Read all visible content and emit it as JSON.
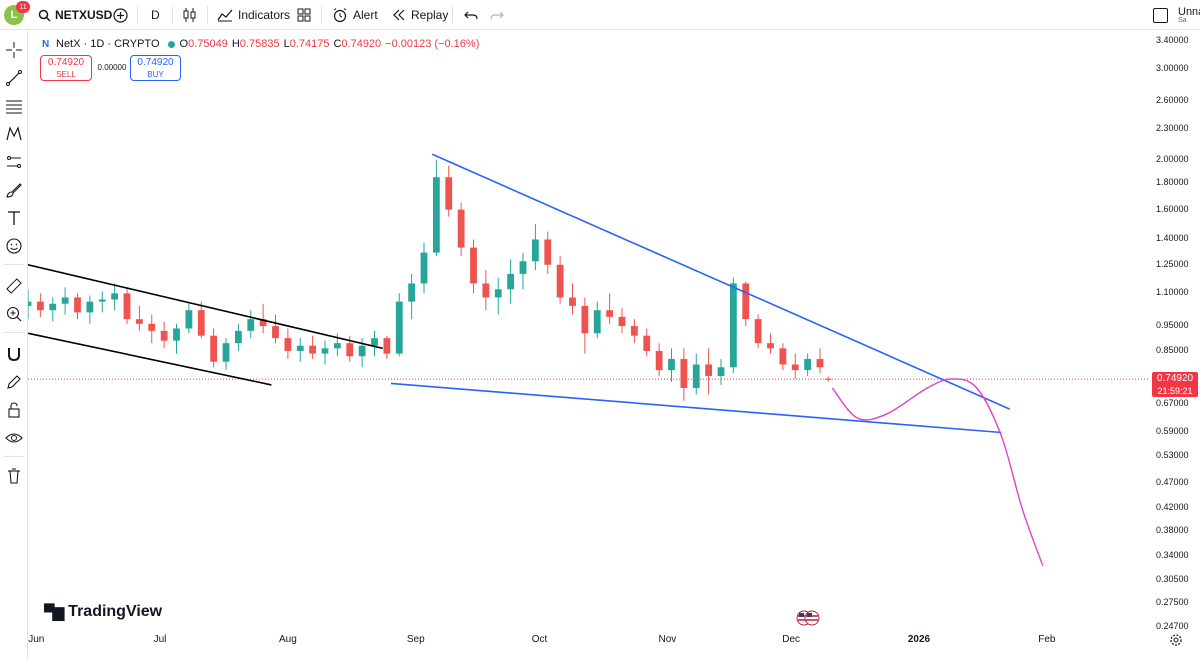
{
  "toolbar": {
    "notifications": "11",
    "avatar_letter": "L",
    "symbol": "NETXUSD",
    "interval": "D",
    "indicators_label": "Indicators",
    "alert_label": "Alert",
    "replay_label": "Replay",
    "layout_name": "Unna",
    "layout_sub": "Sa"
  },
  "legend": {
    "title": "NetX · 1D · CRYPTO",
    "open_label": "O",
    "open": "0.75049",
    "high_label": "H",
    "high": "0.75835",
    "low_label": "L",
    "low": "0.74175",
    "close_label": "C",
    "close": "0.74920",
    "change": "−0.00123 (−0.16%)"
  },
  "trade": {
    "sell_price": "0.74920",
    "sell_label": "SELL",
    "spread": "0.00000",
    "buy_price": "0.74920",
    "buy_label": "BUY"
  },
  "current_price": {
    "price": "0.74920",
    "countdown": "21:59:21"
  },
  "branding": {
    "name": "TradingView"
  },
  "colors": {
    "up": "#26a69a",
    "down": "#ef5350",
    "trend_blue": "#2962ff",
    "channel_black": "#000000",
    "projection": "#e040c8",
    "price_line": "#f23645"
  },
  "chart_data": {
    "type": "candlestick",
    "title": "NetX · 1D · CRYPTO",
    "y_scale": "log",
    "ylim": [
      0.247,
      3.45
    ],
    "y_ticks": [
      "3.40000",
      "3.00000",
      "2.60000",
      "2.30000",
      "2.00000",
      "1.80000",
      "1.60000",
      "1.40000",
      "1.25000",
      "1.10000",
      "0.95000",
      "0.85000",
      "0.67000",
      "0.59000",
      "0.53000",
      "0.47000",
      "0.42000",
      "0.38000",
      "0.34000",
      "0.30500",
      "0.27500",
      "0.24700"
    ],
    "x_ticks": [
      {
        "label": "Jun",
        "date": "2025-06-01"
      },
      {
        "label": "Jul",
        "date": "2025-07-01"
      },
      {
        "label": "Aug",
        "date": "2025-08-01"
      },
      {
        "label": "Sep",
        "date": "2025-09-01"
      },
      {
        "label": "Oct",
        "date": "2025-10-01"
      },
      {
        "label": "Nov",
        "date": "2025-11-01"
      },
      {
        "label": "Dec",
        "date": "2025-12-01"
      },
      {
        "label": "2026",
        "date": "2026-01-01"
      },
      {
        "label": "Feb",
        "date": "2026-02-01"
      }
    ],
    "xlim": [
      "2025-05-30",
      "2026-02-26"
    ],
    "candles": [
      [
        "2025-05-30",
        1.04,
        1.12,
        0.98,
        1.06
      ],
      [
        "2025-06-02",
        1.06,
        1.1,
        0.99,
        1.02
      ],
      [
        "2025-06-05",
        1.02,
        1.08,
        0.97,
        1.05
      ],
      [
        "2025-06-08",
        1.05,
        1.13,
        1.0,
        1.08
      ],
      [
        "2025-06-11",
        1.08,
        1.1,
        0.98,
        1.01
      ],
      [
        "2025-06-14",
        1.01,
        1.09,
        0.96,
        1.06
      ],
      [
        "2025-06-17",
        1.06,
        1.11,
        1.01,
        1.07
      ],
      [
        "2025-06-20",
        1.07,
        1.15,
        1.02,
        1.1
      ],
      [
        "2025-06-23",
        1.1,
        1.13,
        0.96,
        0.98
      ],
      [
        "2025-06-26",
        0.98,
        1.04,
        0.93,
        0.96
      ],
      [
        "2025-06-29",
        0.96,
        1.0,
        0.88,
        0.93
      ],
      [
        "2025-07-02",
        0.93,
        0.97,
        0.86,
        0.89
      ],
      [
        "2025-07-05",
        0.89,
        0.96,
        0.84,
        0.94
      ],
      [
        "2025-07-08",
        0.94,
        1.05,
        0.92,
        1.02
      ],
      [
        "2025-07-11",
        1.02,
        1.06,
        0.9,
        0.91
      ],
      [
        "2025-07-14",
        0.91,
        0.94,
        0.79,
        0.81
      ],
      [
        "2025-07-17",
        0.81,
        0.9,
        0.78,
        0.88
      ],
      [
        "2025-07-20",
        0.88,
        0.96,
        0.85,
        0.93
      ],
      [
        "2025-07-23",
        0.93,
        1.02,
        0.9,
        0.98
      ],
      [
        "2025-07-26",
        0.98,
        1.05,
        0.92,
        0.95
      ],
      [
        "2025-07-29",
        0.95,
        1.0,
        0.88,
        0.9
      ],
      [
        "2025-08-01",
        0.9,
        0.94,
        0.82,
        0.85
      ],
      [
        "2025-08-04",
        0.85,
        0.9,
        0.81,
        0.87
      ],
      [
        "2025-08-07",
        0.87,
        0.91,
        0.82,
        0.84
      ],
      [
        "2025-08-10",
        0.84,
        0.89,
        0.8,
        0.86
      ],
      [
        "2025-08-13",
        0.86,
        0.92,
        0.83,
        0.88
      ],
      [
        "2025-08-16",
        0.88,
        0.91,
        0.81,
        0.83
      ],
      [
        "2025-08-19",
        0.83,
        0.9,
        0.79,
        0.87
      ],
      [
        "2025-08-22",
        0.87,
        0.93,
        0.83,
        0.9
      ],
      [
        "2025-08-25",
        0.9,
        0.91,
        0.82,
        0.84
      ],
      [
        "2025-08-28",
        0.84,
        1.1,
        0.83,
        1.06
      ],
      [
        "2025-08-31",
        1.06,
        1.2,
        0.98,
        1.15
      ],
      [
        "2025-09-03",
        1.15,
        1.38,
        1.1,
        1.32
      ],
      [
        "2025-09-06",
        1.32,
        2.0,
        1.3,
        1.85
      ],
      [
        "2025-09-09",
        1.85,
        1.95,
        1.55,
        1.6
      ],
      [
        "2025-09-12",
        1.6,
        1.65,
        1.3,
        1.35
      ],
      [
        "2025-09-15",
        1.35,
        1.4,
        1.1,
        1.15
      ],
      [
        "2025-09-18",
        1.15,
        1.22,
        1.02,
        1.08
      ],
      [
        "2025-09-21",
        1.08,
        1.18,
        1.0,
        1.12
      ],
      [
        "2025-09-24",
        1.12,
        1.28,
        1.05,
        1.2
      ],
      [
        "2025-09-27",
        1.2,
        1.32,
        1.12,
        1.27
      ],
      [
        "2025-09-30",
        1.27,
        1.5,
        1.22,
        1.4
      ],
      [
        "2025-10-03",
        1.4,
        1.45,
        1.2,
        1.25
      ],
      [
        "2025-10-06",
        1.25,
        1.3,
        1.05,
        1.08
      ],
      [
        "2025-10-09",
        1.08,
        1.15,
        1.0,
        1.04
      ],
      [
        "2025-10-12",
        1.04,
        1.08,
        0.84,
        0.92
      ],
      [
        "2025-10-15",
        0.92,
        1.06,
        0.9,
        1.02
      ],
      [
        "2025-10-18",
        1.02,
        1.1,
        0.96,
        0.99
      ],
      [
        "2025-10-21",
        0.99,
        1.03,
        0.92,
        0.95
      ],
      [
        "2025-10-24",
        0.95,
        0.98,
        0.88,
        0.91
      ],
      [
        "2025-10-27",
        0.91,
        0.94,
        0.83,
        0.85
      ],
      [
        "2025-10-30",
        0.85,
        0.88,
        0.76,
        0.78
      ],
      [
        "2025-11-02",
        0.78,
        0.86,
        0.74,
        0.82
      ],
      [
        "2025-11-05",
        0.82,
        0.86,
        0.68,
        0.72
      ],
      [
        "2025-11-08",
        0.72,
        0.84,
        0.7,
        0.8
      ],
      [
        "2025-11-11",
        0.8,
        0.86,
        0.7,
        0.76
      ],
      [
        "2025-11-14",
        0.76,
        0.82,
        0.73,
        0.79
      ],
      [
        "2025-11-17",
        0.79,
        1.18,
        0.77,
        1.15
      ],
      [
        "2025-11-20",
        1.15,
        1.16,
        0.95,
        0.98
      ],
      [
        "2025-11-23",
        0.98,
        1.0,
        0.86,
        0.88
      ],
      [
        "2025-11-26",
        0.88,
        0.92,
        0.84,
        0.86
      ],
      [
        "2025-11-29",
        0.86,
        0.88,
        0.78,
        0.8
      ],
      [
        "2025-12-02",
        0.8,
        0.84,
        0.75,
        0.78
      ],
      [
        "2025-12-05",
        0.78,
        0.84,
        0.76,
        0.82
      ],
      [
        "2025-12-08",
        0.82,
        0.86,
        0.77,
        0.79
      ],
      [
        "2025-12-10",
        0.75049,
        0.75835,
        0.74175,
        0.7492
      ]
    ],
    "drawings": {
      "channel_upper": [
        [
          "2025-05-30",
          1.25
        ],
        [
          "2025-08-24",
          0.86
        ]
      ],
      "channel_lower": [
        [
          "2025-05-30",
          0.92
        ],
        [
          "2025-07-28",
          0.73
        ]
      ],
      "wedge_upper": [
        [
          "2025-09-05",
          2.05
        ],
        [
          "2026-01-23",
          0.655
        ]
      ],
      "wedge_lower": [
        [
          "2025-08-26",
          0.735
        ],
        [
          "2026-01-21",
          0.59
        ]
      ],
      "projection": [
        [
          "2025-12-11",
          0.72
        ],
        [
          "2025-12-17",
          0.63
        ],
        [
          "2025-12-24",
          0.64
        ],
        [
          "2026-01-03",
          0.72
        ],
        [
          "2026-01-09",
          0.75
        ],
        [
          "2026-01-15",
          0.72
        ],
        [
          "2026-01-21",
          0.58
        ],
        [
          "2026-01-26",
          0.42
        ],
        [
          "2026-01-31",
          0.325
        ]
      ]
    }
  }
}
